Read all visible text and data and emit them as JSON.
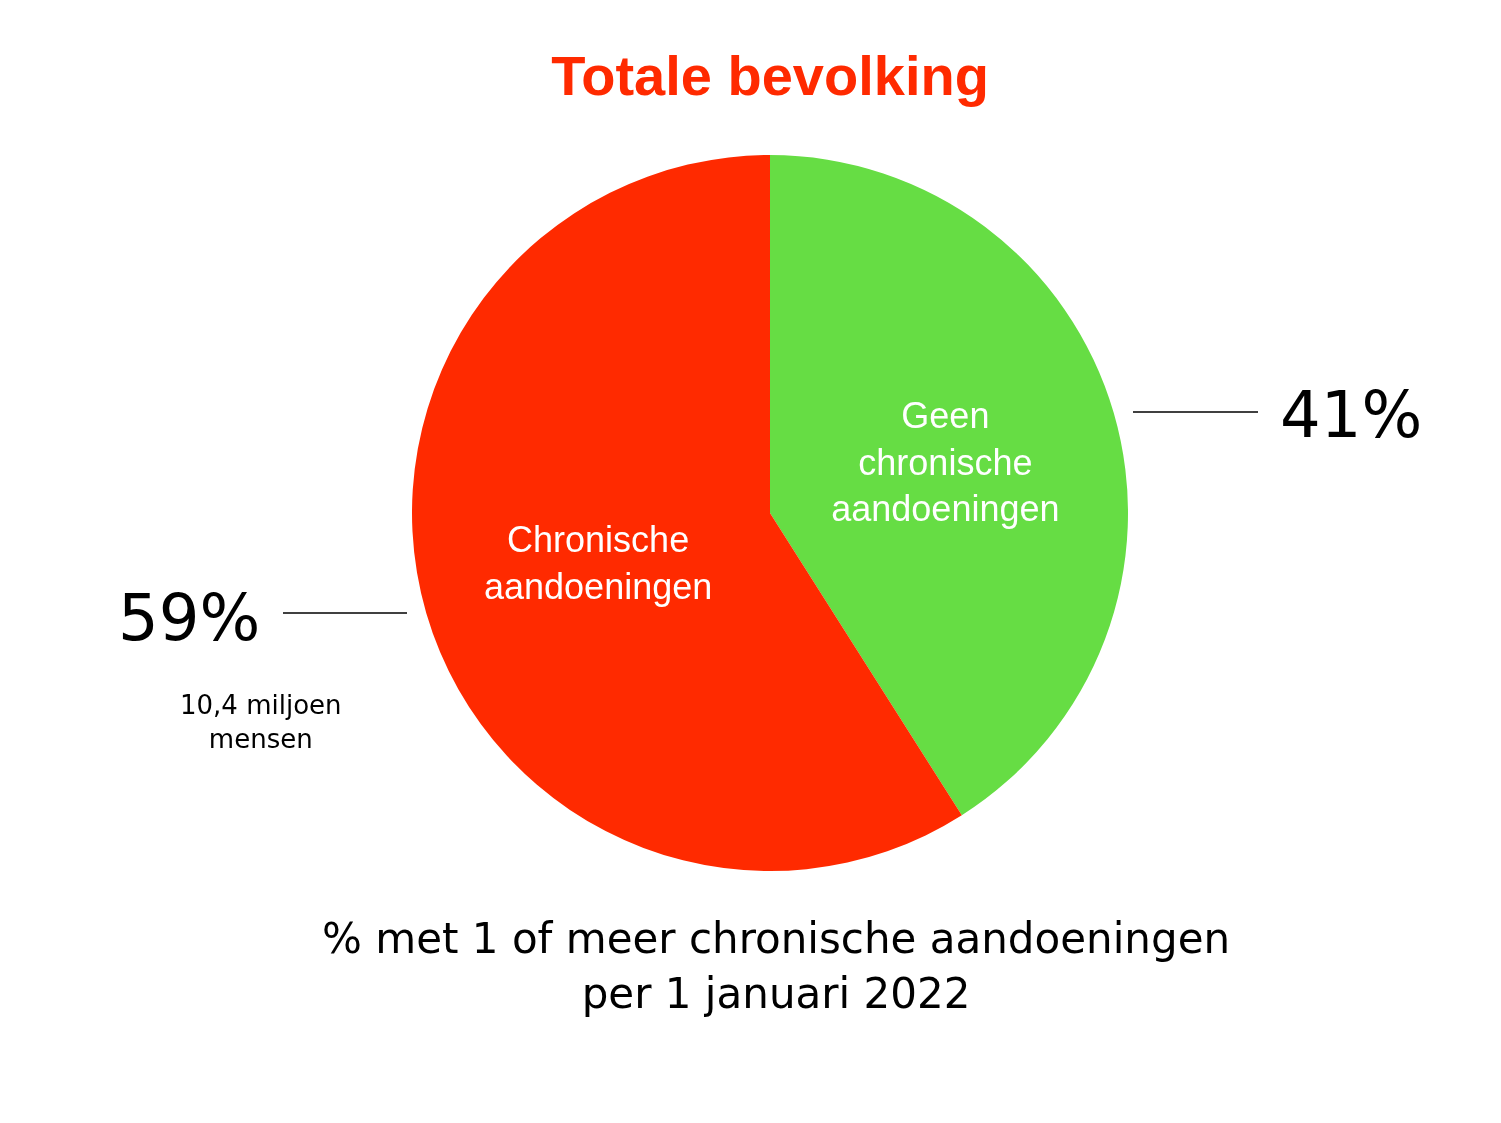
{
  "chart_data": {
    "type": "pie",
    "title": "Totale bevolking",
    "categories": [
      "Geen chronische aandoeningen",
      "Chronische aandoeningen"
    ],
    "values": [
      41,
      59
    ],
    "colors": [
      "#66dd44",
      "#ff2a00"
    ],
    "value_labels": [
      "41%",
      "59%"
    ],
    "annotations": [
      "10,4 miljoen\nmensen",
      "% met 1 of meer chronische aandoeningen\nper 1 januari 2022"
    ]
  }
}
